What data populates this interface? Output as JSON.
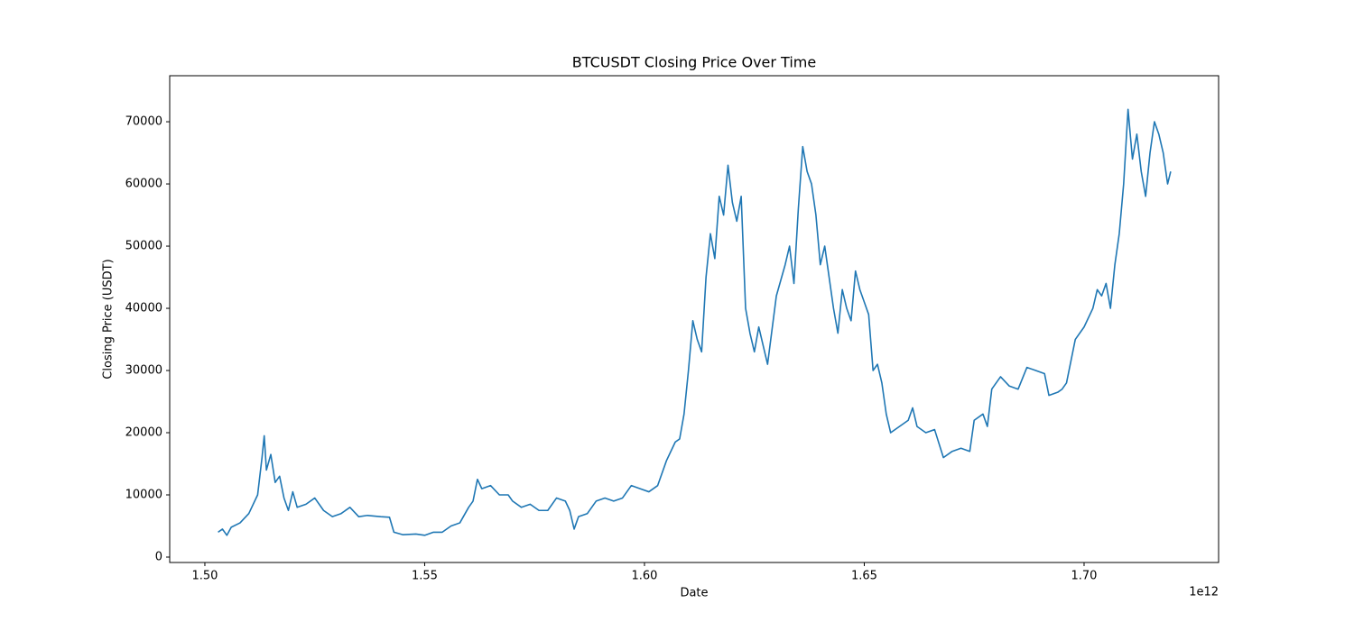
{
  "chart_data": {
    "type": "line",
    "title": "BTCUSDT Closing Price Over Time",
    "x_label": "Date",
    "y_label": "Closing Price (USDT)",
    "x_offset_label": "1e12",
    "xlim": [
      1492000000000.0,
      1730600000000.0
    ],
    "ylim": [
      -870,
      77400
    ],
    "xticks": [
      {
        "value": 1500000000000.0,
        "label": "1.50"
      },
      {
        "value": 1550000000000.0,
        "label": "1.55"
      },
      {
        "value": 1600000000000.0,
        "label": "1.60"
      },
      {
        "value": 1650000000000.0,
        "label": "1.65"
      },
      {
        "value": 1700000000000.0,
        "label": "1.70"
      }
    ],
    "yticks": [
      0,
      10000,
      20000,
      30000,
      40000,
      50000,
      60000,
      70000
    ],
    "grid": false,
    "x": [
      1503000000000.0,
      1504000000000.0,
      1505000000000.0,
      1506000000000.0,
      1508000000000.0,
      1510000000000.0,
      1512000000000.0,
      1513000000000.0,
      1513500000000.0,
      1514000000000.0,
      1515000000000.0,
      1516000000000.0,
      1517000000000.0,
      1518000000000.0,
      1519000000000.0,
      1520000000000.0,
      1521000000000.0,
      1523000000000.0,
      1525000000000.0,
      1527000000000.0,
      1529000000000.0,
      1531000000000.0,
      1533000000000.0,
      1535000000000.0,
      1537000000000.0,
      1540000000000.0,
      1542000000000.0,
      1543000000000.0,
      1545000000000.0,
      1548000000000.0,
      1550000000000.0,
      1552000000000.0,
      1554000000000.0,
      1556000000000.0,
      1558000000000.0,
      1560000000000.0,
      1561000000000.0,
      1562000000000.0,
      1563000000000.0,
      1565000000000.0,
      1567000000000.0,
      1569000000000.0,
      1570000000000.0,
      1572000000000.0,
      1574000000000.0,
      1576000000000.0,
      1578000000000.0,
      1580000000000.0,
      1582000000000.0,
      1583000000000.0,
      1584000000000.0,
      1585000000000.0,
      1587000000000.0,
      1589000000000.0,
      1591000000000.0,
      1593000000000.0,
      1595000000000.0,
      1597000000000.0,
      1599000000000.0,
      1601000000000.0,
      1603000000000.0,
      1605000000000.0,
      1607000000000.0,
      1608000000000.0,
      1609000000000.0,
      1610000000000.0,
      1611000000000.0,
      1612000000000.0,
      1613000000000.0,
      1614000000000.0,
      1615000000000.0,
      1616000000000.0,
      1617000000000.0,
      1618000000000.0,
      1619000000000.0,
      1620000000000.0,
      1621000000000.0,
      1622000000000.0,
      1623000000000.0,
      1624000000000.0,
      1625000000000.0,
      1626000000000.0,
      1627000000000.0,
      1628000000000.0,
      1630000000000.0,
      1632000000000.0,
      1633000000000.0,
      1634000000000.0,
      1635000000000.0,
      1636000000000.0,
      1637000000000.0,
      1638000000000.0,
      1639000000000.0,
      1640000000000.0,
      1641000000000.0,
      1642000000000.0,
      1643000000000.0,
      1644000000000.0,
      1645000000000.0,
      1646000000000.0,
      1647000000000.0,
      1648000000000.0,
      1649000000000.0,
      1650000000000.0,
      1651000000000.0,
      1652000000000.0,
      1653000000000.0,
      1654000000000.0,
      1655000000000.0,
      1656000000000.0,
      1658000000000.0,
      1660000000000.0,
      1661000000000.0,
      1662000000000.0,
      1664000000000.0,
      1666000000000.0,
      1668000000000.0,
      1670000000000.0,
      1672000000000.0,
      1674000000000.0,
      1675000000000.0,
      1677000000000.0,
      1678000000000.0,
      1679000000000.0,
      1681000000000.0,
      1683000000000.0,
      1685000000000.0,
      1687000000000.0,
      1689000000000.0,
      1691000000000.0,
      1692000000000.0,
      1694000000000.0,
      1695000000000.0,
      1696000000000.0,
      1698000000000.0,
      1700000000000.0,
      1702000000000.0,
      1703000000000.0,
      1704000000000.0,
      1705000000000.0,
      1706000000000.0,
      1707000000000.0,
      1708000000000.0,
      1709000000000.0,
      1710000000000.0,
      1711000000000.0,
      1712000000000.0,
      1713000000000.0,
      1714000000000.0,
      1715000000000.0,
      1716000000000.0,
      1717000000000.0,
      1718000000000.0,
      1719000000000.0,
      1719700000000.0
    ],
    "series": [
      {
        "name": "BTCUSDT",
        "color": "#1f77b4",
        "values": [
          4000,
          4500,
          3500,
          4800,
          5500,
          7000,
          10000,
          16000,
          19500,
          14000,
          16500,
          12000,
          13000,
          9500,
          7500,
          10500,
          8000,
          8500,
          9500,
          7500,
          6500,
          7000,
          8000,
          6500,
          6700,
          6500,
          6400,
          4000,
          3600,
          3700,
          3500,
          4000,
          4000,
          5000,
          5500,
          8000,
          9000,
          12500,
          11000,
          11500,
          10000,
          10000,
          9000,
          8000,
          8500,
          7500,
          7500,
          9500,
          9000,
          7500,
          4500,
          6500,
          7000,
          9000,
          9500,
          9000,
          9500,
          11500,
          11000,
          10500,
          11500,
          15500,
          18500,
          19000,
          23000,
          30000,
          38000,
          35000,
          33000,
          45000,
          52000,
          48000,
          58000,
          55000,
          63000,
          57000,
          54000,
          58000,
          40000,
          36000,
          33000,
          37000,
          34000,
          31000,
          42000,
          47000,
          50000,
          44000,
          56000,
          66000,
          62000,
          60000,
          55000,
          47000,
          50000,
          45000,
          40000,
          36000,
          43000,
          40000,
          38000,
          46000,
          43000,
          41000,
          39000,
          30000,
          31000,
          28000,
          23000,
          20000,
          21000,
          22000,
          24000,
          21000,
          20000,
          20500,
          16000,
          17000,
          17500,
          17000,
          22000,
          23000,
          21000,
          27000,
          29000,
          27500,
          27000,
          30500,
          30000,
          29500,
          26000,
          26500,
          27000,
          28000,
          35000,
          37000,
          40000,
          43000,
          42000,
          44000,
          40000,
          47000,
          52000,
          60000,
          72000,
          64000,
          68000,
          62000,
          58000,
          65000,
          70000,
          68000,
          65000,
          60000,
          62000
        ]
      }
    ]
  }
}
